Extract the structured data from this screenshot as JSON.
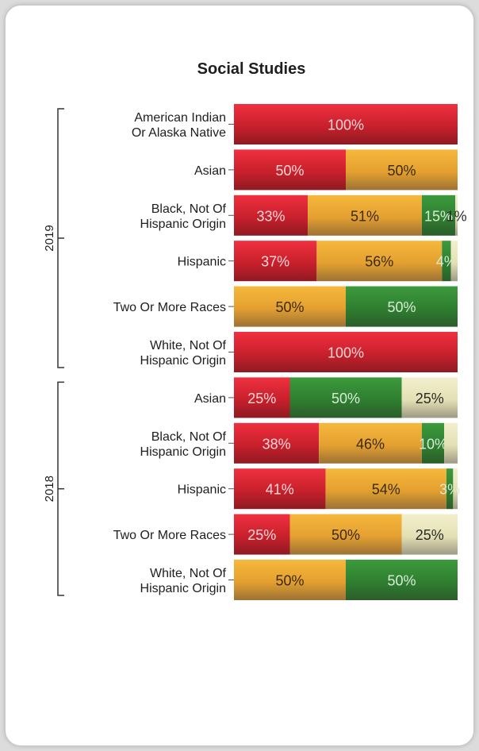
{
  "chart_data": {
    "type": "bar",
    "orientation": "horizontal",
    "stacked": true,
    "title": "Social Studies",
    "xlim": [
      0,
      100
    ],
    "segment_colors": [
      "#c8202c",
      "#e8a533",
      "#3a8c3a",
      "#e4e0b4"
    ],
    "groups": [
      {
        "label": "2019",
        "rows": [
          {
            "category": [
              "American Indian",
              "Or Alaska Native"
            ],
            "values": [
              100,
              0,
              0,
              0
            ],
            "labels": [
              "100%",
              "",
              "",
              ""
            ]
          },
          {
            "category": [
              "Asian"
            ],
            "values": [
              50,
              50,
              0,
              0
            ],
            "labels": [
              "50%",
              "50%",
              "",
              ""
            ]
          },
          {
            "category": [
              "Black, Not Of",
              "Hispanic Origin"
            ],
            "values": [
              33,
              51,
              15,
              1
            ],
            "labels": [
              "33%",
              "51%",
              "15%",
              "1%"
            ]
          },
          {
            "category": [
              "Hispanic"
            ],
            "values": [
              37,
              56,
              4,
              3
            ],
            "labels": [
              "37%",
              "56%",
              "4%",
              ""
            ]
          },
          {
            "category": [
              "Two Or More Races"
            ],
            "values": [
              0,
              50,
              50,
              0
            ],
            "labels": [
              "",
              "50%",
              "50%",
              ""
            ]
          },
          {
            "category": [
              "White, Not Of",
              "Hispanic Origin"
            ],
            "values": [
              100,
              0,
              0,
              0
            ],
            "labels": [
              "100%",
              "",
              "",
              ""
            ]
          }
        ]
      },
      {
        "label": "2018",
        "rows": [
          {
            "category": [
              "Asian"
            ],
            "values": [
              25,
              0,
              50,
              25
            ],
            "labels": [
              "25%",
              "",
              "50%",
              "25%"
            ]
          },
          {
            "category": [
              "Black, Not Of",
              "Hispanic Origin"
            ],
            "values": [
              38,
              46,
              10,
              6
            ],
            "labels": [
              "38%",
              "46%",
              "10%",
              ""
            ]
          },
          {
            "category": [
              "Hispanic"
            ],
            "values": [
              41,
              54,
              3,
              2
            ],
            "labels": [
              "41%",
              "54%",
              "3%",
              ""
            ]
          },
          {
            "category": [
              "Two Or More Races"
            ],
            "values": [
              25,
              50,
              0,
              25
            ],
            "labels": [
              "25%",
              "50%",
              "",
              "25%"
            ]
          },
          {
            "category": [
              "White, Not Of",
              "Hispanic Origin"
            ],
            "values": [
              0,
              50,
              50,
              0
            ],
            "labels": [
              "",
              "50%",
              "50%",
              ""
            ]
          }
        ]
      }
    ]
  }
}
